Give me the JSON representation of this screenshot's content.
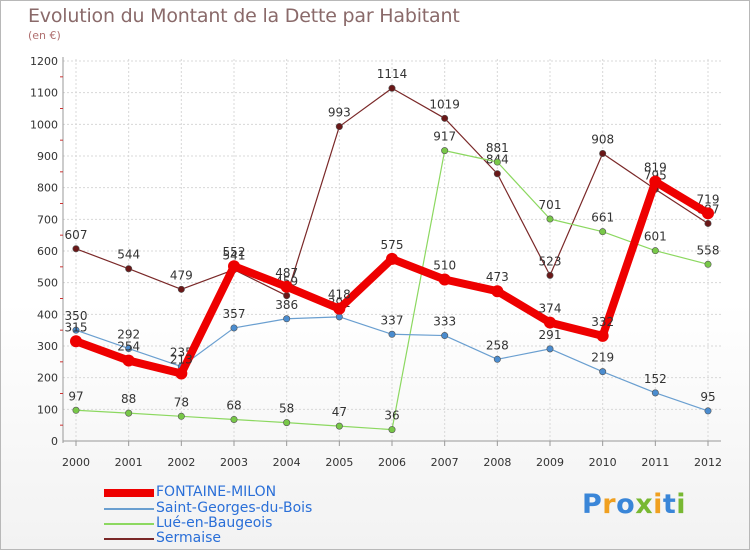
{
  "title": "Evolution du Montant de la Dette par Habitant",
  "subtitle": "(en €)",
  "logo": {
    "text": "Proxiti",
    "letters": [
      {
        "ch": "P",
        "color": "#3a86d8"
      },
      {
        "ch": "r",
        "color": "#f0a020"
      },
      {
        "ch": "o",
        "color": "#3a86d8"
      },
      {
        "ch": "x",
        "color": "#78b832"
      },
      {
        "ch": "i",
        "color": "#f0a020"
      },
      {
        "ch": "t",
        "color": "#3a86d8"
      },
      {
        "ch": "i",
        "color": "#78b832"
      }
    ]
  },
  "chart_data": {
    "type": "line",
    "title": "Evolution du Montant de la Dette par Habitant",
    "ylabel": "(en €)",
    "xlabel": "",
    "x": [
      "2000",
      "2001",
      "2002",
      "2003",
      "2004",
      "2005",
      "2006",
      "2007",
      "2008",
      "2009",
      "2010",
      "2011",
      "2012"
    ],
    "ylim": [
      0,
      1200
    ],
    "yticks": [
      "0",
      "100",
      "200",
      "300",
      "400",
      "500",
      "600",
      "700",
      "800",
      "900",
      "1000",
      "1100",
      "1200"
    ],
    "grid": true,
    "legend_position": "bottom-left",
    "series": [
      {
        "name": "Sermaise",
        "color": "#7a2828",
        "marker_color": "#6a1818",
        "width": 1.2,
        "values": [
          607,
          544,
          479,
          541,
          459,
          993,
          1114,
          1019,
          844,
          523,
          908,
          795,
          687
        ],
        "labels": [
          "607",
          "544",
          "479",
          "541",
          "459",
          "993",
          "1114",
          "1019",
          "844",
          "523",
          "908",
          "795",
          "687"
        ]
      },
      {
        "name": "Lué-en-Baugeois",
        "color": "#8cd860",
        "marker_color": "#78c848",
        "width": 1.2,
        "values": [
          97,
          88,
          78,
          68,
          58,
          47,
          36,
          917,
          881,
          701,
          661,
          601,
          558
        ],
        "labels": [
          "97",
          "88",
          "78",
          "68",
          "58",
          "47",
          "36",
          "917",
          "881",
          "701",
          "661",
          "601",
          "558"
        ]
      },
      {
        "name": "Saint-Georges-du-Bois",
        "color": "#6a9fd0",
        "marker_color": "#4a8ccf",
        "width": 1.2,
        "values": [
          350,
          292,
          235,
          357,
          386,
          392,
          337,
          333,
          258,
          291,
          219,
          152,
          95
        ],
        "labels": [
          "350",
          "292",
          "235",
          "357",
          "386",
          "392",
          "337",
          "333",
          "258",
          "291",
          "219",
          "152",
          "95"
        ]
      },
      {
        "name": "FONTAINE-MILON",
        "color": "#ee0000",
        "marker_color": "#ee0000",
        "width": 8,
        "values": [
          315,
          254,
          213,
          552,
          487,
          418,
          575,
          510,
          473,
          374,
          332,
          819,
          719
        ],
        "labels": [
          "315",
          "254",
          "213",
          "552",
          "487",
          "418",
          "575",
          "510",
          "473",
          "374",
          "332",
          "819",
          "719"
        ]
      }
    ],
    "legend": [
      "FONTAINE-MILON",
      "Saint-Georges-du-Bois",
      "Lué-en-Baugeois",
      "Sermaise"
    ]
  }
}
